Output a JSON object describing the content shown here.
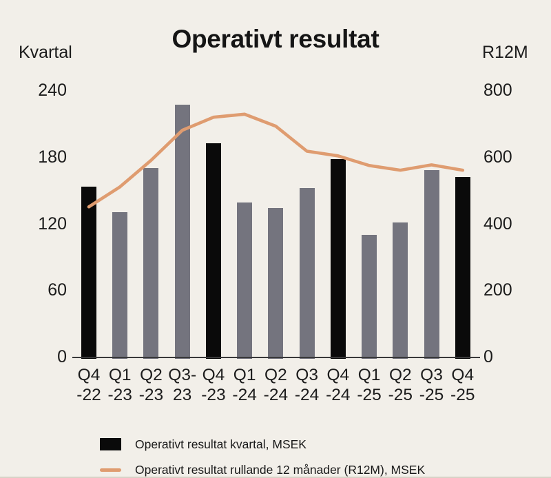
{
  "title": "Operativt resultat",
  "left_axis": {
    "label": "Kvartal",
    "ticks": [
      240,
      180,
      120,
      60,
      0
    ]
  },
  "right_axis": {
    "label": "R12M",
    "ticks": [
      800,
      600,
      400,
      200,
      0
    ]
  },
  "legend": [
    {
      "swatch": "bar",
      "label": "Operativt resultat kvartal, MSEK"
    },
    {
      "swatch": "line",
      "label": "Operativt resultat rullande 12 månader (R12M), MSEK"
    }
  ],
  "colors": {
    "background": "#f2efe9",
    "bar_gray": "#74747e",
    "bar_black": "#0a0a0a",
    "line": "#df9c70",
    "axis": "#39393a"
  },
  "chart_data": {
    "type": "bar",
    "title": "Operativt resultat",
    "categories": [
      [
        "Q4",
        "-22"
      ],
      [
        "Q1",
        "-23"
      ],
      [
        "Q2",
        "-23"
      ],
      [
        "Q3-",
        "23"
      ],
      [
        "Q4",
        "-23"
      ],
      [
        "Q1",
        "-24"
      ],
      [
        "Q2",
        "-24"
      ],
      [
        "Q3",
        "-24"
      ],
      [
        "Q4",
        "-24"
      ],
      [
        "Q1",
        "-25"
      ],
      [
        "Q2",
        "-25"
      ],
      [
        "Q3",
        "-25"
      ],
      [
        "Q4",
        "-25"
      ]
    ],
    "series": [
      {
        "name": "Operativt resultat kvartal, MSEK",
        "type": "bar",
        "axis": "left",
        "values": [
          153,
          130,
          170,
          227,
          192,
          139,
          134,
          152,
          178,
          110,
          121,
          168,
          162
        ],
        "emphasized_black_bars": [
          "Q4-22",
          "Q4-23",
          "Q4-24",
          "Q4-25"
        ]
      },
      {
        "name": "Operativt resultat rullande 12 månader (R12M), MSEK",
        "type": "line",
        "axis": "right",
        "values": [
          450,
          510,
          590,
          680,
          719,
          728,
          692,
          617,
          603,
          574,
          560,
          576,
          560
        ]
      }
    ],
    "left_ylabel": "Kvartal",
    "right_ylabel": "R12M",
    "left_ylim": [
      0,
      240
    ],
    "right_ylim": [
      0,
      800
    ],
    "grid": false,
    "legend_position": "bottom"
  }
}
